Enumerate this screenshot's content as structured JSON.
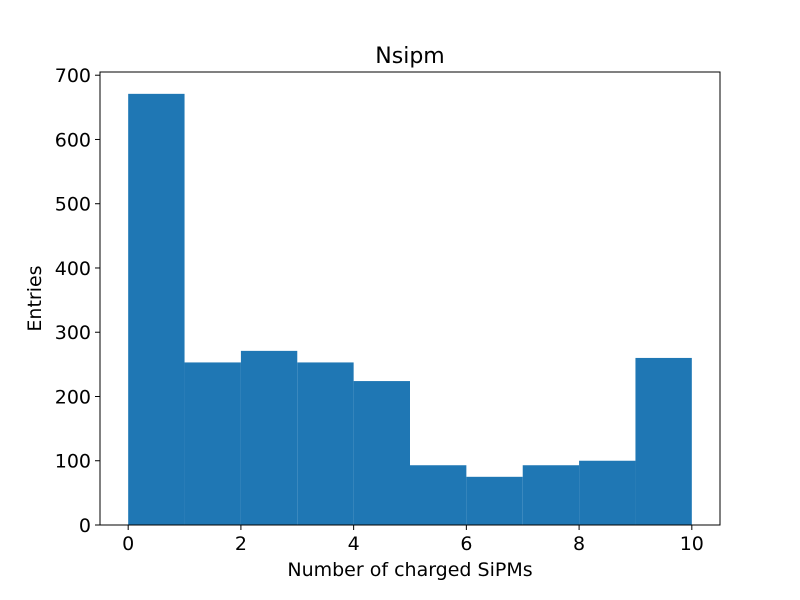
{
  "chart_data": {
    "type": "bar",
    "title": "Nsipm",
    "xlabel": "Number of charged SiPMs",
    "ylabel": "Entries",
    "xlim": [
      -0.5,
      10.5
    ],
    "ylim": [
      0,
      705
    ],
    "bin_edges": [
      0,
      1,
      2,
      3,
      4,
      5,
      6,
      7,
      8,
      9,
      10
    ],
    "values": [
      671,
      253,
      271,
      253,
      224,
      93,
      75,
      93,
      100,
      260
    ],
    "x_ticks": [
      0,
      2,
      4,
      6,
      8,
      10
    ],
    "x_tick_labels": [
      "0",
      "2",
      "4",
      "6",
      "8",
      "10"
    ],
    "y_ticks": [
      0,
      100,
      200,
      300,
      400,
      500,
      600,
      700
    ],
    "y_tick_labels": [
      "0",
      "100",
      "200",
      "300",
      "400",
      "500",
      "600",
      "700"
    ],
    "bar_color": "#1f77b4",
    "grid": false,
    "legend": "none"
  }
}
